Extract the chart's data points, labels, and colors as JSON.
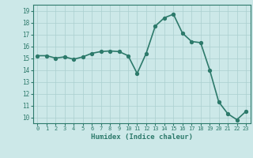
{
  "x": [
    0,
    1,
    2,
    3,
    4,
    5,
    6,
    7,
    8,
    9,
    10,
    11,
    12,
    13,
    14,
    15,
    16,
    17,
    18,
    19,
    20,
    21,
    22,
    23
  ],
  "y": [
    15.2,
    15.2,
    15.0,
    15.1,
    14.9,
    15.1,
    15.4,
    15.55,
    15.6,
    15.55,
    15.2,
    13.7,
    15.4,
    17.7,
    18.4,
    18.7,
    17.1,
    16.4,
    16.3,
    14.0,
    11.3,
    10.3,
    9.8,
    10.5
  ],
  "xlabel": "Humidex (Indice chaleur)",
  "ylim": [
    9.5,
    19.5
  ],
  "xlim": [
    -0.5,
    23.5
  ],
  "yticks": [
    10,
    11,
    12,
    13,
    14,
    15,
    16,
    17,
    18,
    19
  ],
  "xticks": [
    0,
    1,
    2,
    3,
    4,
    5,
    6,
    7,
    8,
    9,
    10,
    11,
    12,
    13,
    14,
    15,
    16,
    17,
    18,
    19,
    20,
    21,
    22,
    23
  ],
  "line_color": "#2d7a6b",
  "marker_color": "#2d7a6b",
  "bg_color": "#cce8e8",
  "grid_color": "#aacfcf",
  "label_color": "#2d7a6b",
  "tick_color": "#2d7a6b",
  "line_width": 1.2,
  "marker_size": 2.8
}
